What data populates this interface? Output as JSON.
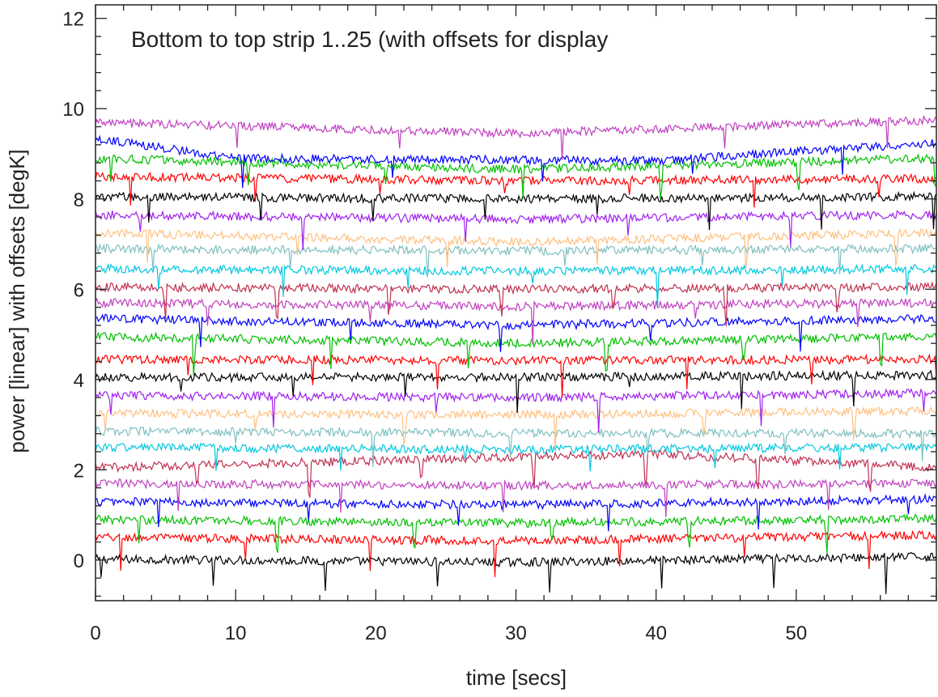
{
  "chart_data": {
    "type": "line",
    "title": "Bottom to top strip 1..25 (with offsets for display",
    "xlabel": "time [secs]",
    "ylabel": "power [linear] with offsets [degK]",
    "xlim": [
      0,
      60
    ],
    "ylim": [
      -0.9,
      12.3
    ],
    "x_ticks": [
      0,
      10,
      20,
      30,
      40,
      50
    ],
    "y_ticks": [
      0,
      2,
      4,
      6,
      8,
      10,
      12
    ],
    "x_tick_labels": [
      "0",
      "10",
      "20",
      "30",
      "40",
      "50"
    ],
    "y_tick_labels": [
      "0",
      "2",
      "4",
      "6",
      "8",
      "10",
      "12"
    ],
    "grid": false,
    "legend": "none",
    "sample_count": 600,
    "series": [
      {
        "strip": 1,
        "color": "#000000",
        "offset": 0.0,
        "noise": 0.06,
        "trend": [
          [
            0,
            0.02
          ],
          [
            30,
            -0.05
          ],
          [
            60,
            0.08
          ]
        ]
      },
      {
        "strip": 2,
        "color": "#ff0000",
        "offset": 0.4,
        "noise": 0.06,
        "trend": [
          [
            0,
            0.1
          ],
          [
            30,
            0.03
          ],
          [
            60,
            0.15
          ]
        ]
      },
      {
        "strip": 3,
        "color": "#00c000",
        "offset": 0.8,
        "noise": 0.06,
        "trend": [
          [
            0,
            0.1
          ],
          [
            30,
            0.02
          ],
          [
            60,
            0.12
          ]
        ]
      },
      {
        "strip": 4,
        "color": "#0000ff",
        "offset": 1.2,
        "noise": 0.06,
        "trend": [
          [
            0,
            0.1
          ],
          [
            30,
            0.02
          ],
          [
            60,
            0.15
          ]
        ]
      },
      {
        "strip": 5,
        "color": "#c040c0",
        "offset": 1.6,
        "noise": 0.06,
        "trend": [
          [
            0,
            0.1
          ],
          [
            30,
            0.05
          ],
          [
            60,
            0.1
          ]
        ]
      },
      {
        "strip": 6,
        "color": "#c03050",
        "offset": 2.0,
        "noise": 0.06,
        "trend": [
          [
            0,
            0.05
          ],
          [
            40,
            0.35
          ],
          [
            60,
            0.05
          ]
        ]
      },
      {
        "strip": 7,
        "color": "#00c8e0",
        "offset": 2.4,
        "noise": 0.06,
        "trend": [
          [
            0,
            0.1
          ],
          [
            30,
            0.05
          ],
          [
            60,
            0.1
          ]
        ]
      },
      {
        "strip": 8,
        "color": "#80c0c0",
        "offset": 2.8,
        "noise": 0.06,
        "trend": [
          [
            0,
            0.05
          ],
          [
            30,
            0.02
          ],
          [
            60,
            0.0
          ]
        ]
      },
      {
        "strip": 9,
        "color": "#ffc080",
        "offset": 3.2,
        "noise": 0.06,
        "trend": [
          [
            0,
            0.05
          ],
          [
            30,
            0.02
          ],
          [
            60,
            0.1
          ]
        ]
      },
      {
        "strip": 10,
        "color": "#a020f0",
        "offset": 3.6,
        "noise": 0.06,
        "trend": [
          [
            0,
            0.05
          ],
          [
            30,
            0.0
          ],
          [
            60,
            0.1
          ]
        ]
      },
      {
        "strip": 11,
        "color": "#000000",
        "offset": 4.0,
        "noise": 0.06,
        "trend": [
          [
            0,
            0.05
          ],
          [
            30,
            0.05
          ],
          [
            60,
            0.1
          ]
        ]
      },
      {
        "strip": 12,
        "color": "#ff0000",
        "offset": 4.4,
        "noise": 0.06,
        "trend": [
          [
            0,
            0.05
          ],
          [
            30,
            0.02
          ],
          [
            60,
            0.05
          ]
        ]
      },
      {
        "strip": 13,
        "color": "#00c000",
        "offset": 4.8,
        "noise": 0.06,
        "trend": [
          [
            0,
            0.15
          ],
          [
            30,
            0.0
          ],
          [
            60,
            0.15
          ]
        ]
      },
      {
        "strip": 14,
        "color": "#0000ff",
        "offset": 5.2,
        "noise": 0.06,
        "trend": [
          [
            0,
            0.15
          ],
          [
            30,
            0.0
          ],
          [
            60,
            0.15
          ]
        ]
      },
      {
        "strip": 15,
        "color": "#c040c0",
        "offset": 5.6,
        "noise": 0.06,
        "trend": [
          [
            0,
            0.1
          ],
          [
            30,
            0.02
          ],
          [
            60,
            0.1
          ]
        ]
      },
      {
        "strip": 16,
        "color": "#c03050",
        "offset": 6.0,
        "noise": 0.06,
        "trend": [
          [
            0,
            0.05
          ],
          [
            30,
            0.0
          ],
          [
            60,
            0.05
          ]
        ]
      },
      {
        "strip": 17,
        "color": "#00c8e0",
        "offset": 6.4,
        "noise": 0.06,
        "trend": [
          [
            0,
            0.05
          ],
          [
            30,
            0.0
          ],
          [
            60,
            0.05
          ]
        ]
      },
      {
        "strip": 18,
        "color": "#80c0c0",
        "offset": 6.8,
        "noise": 0.06,
        "trend": [
          [
            0,
            0.1
          ],
          [
            30,
            0.05
          ],
          [
            60,
            0.1
          ]
        ]
      },
      {
        "strip": 19,
        "color": "#ffc080",
        "offset": 7.2,
        "noise": 0.06,
        "trend": [
          [
            0,
            0.05
          ],
          [
            30,
            -0.15
          ],
          [
            60,
            0.05
          ]
        ]
      },
      {
        "strip": 20,
        "color": "#a020f0",
        "offset": 7.6,
        "noise": 0.06,
        "trend": [
          [
            0,
            0.05
          ],
          [
            30,
            -0.05
          ],
          [
            60,
            0.05
          ]
        ]
      },
      {
        "strip": 21,
        "color": "#000000",
        "offset": 8.0,
        "noise": 0.06,
        "trend": [
          [
            0,
            0.05
          ],
          [
            30,
            0.0
          ],
          [
            60,
            0.05
          ]
        ]
      },
      {
        "strip": 22,
        "color": "#ff0000",
        "offset": 8.4,
        "noise": 0.06,
        "trend": [
          [
            0,
            0.1
          ],
          [
            30,
            0.0
          ],
          [
            60,
            0.05
          ]
        ]
      },
      {
        "strip": 23,
        "color": "#00c000",
        "offset": 8.8,
        "noise": 0.06,
        "trend": [
          [
            0,
            0.1
          ],
          [
            30,
            -0.15
          ],
          [
            60,
            0.1
          ]
        ]
      },
      {
        "strip": 24,
        "color": "#0000ff",
        "offset": 9.2,
        "noise": 0.06,
        "trend": [
          [
            0,
            0.15
          ],
          [
            10,
            -0.3
          ],
          [
            40,
            -0.35
          ],
          [
            60,
            0.05
          ]
        ]
      },
      {
        "strip": 25,
        "color": "#c040c0",
        "offset": 9.6,
        "noise": 0.06,
        "trend": [
          [
            0,
            0.1
          ],
          [
            30,
            -0.15
          ],
          [
            60,
            0.15
          ]
        ]
      }
    ]
  }
}
